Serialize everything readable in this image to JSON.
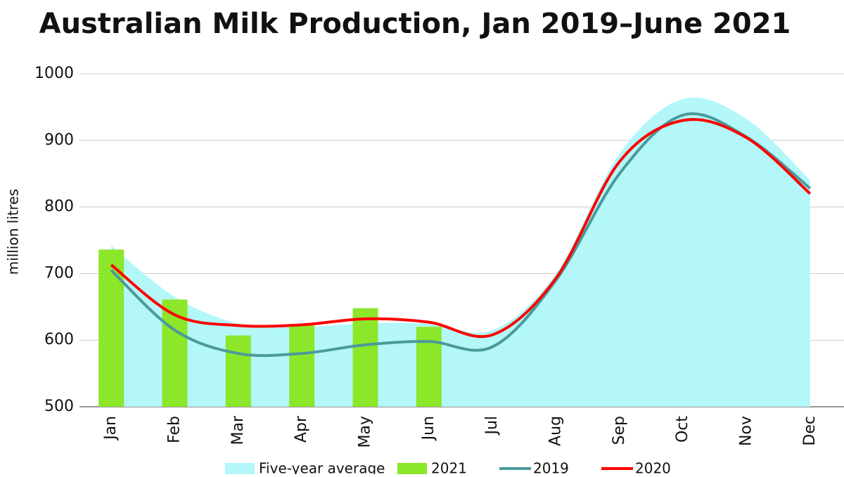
{
  "chart_data": {
    "type": "combo",
    "title": "Australian Milk Production, Jan 2019–June 2021",
    "y_label": "million litres",
    "categories": [
      "Jan",
      "Feb",
      "Mar",
      "Apr",
      "May",
      "Jun",
      "Jul",
      "Aug",
      "Sep",
      "Oct",
      "Nov",
      "Dec"
    ],
    "series": [
      {
        "name": "Five-year average",
        "type": "area",
        "color": "#b3f7f8",
        "values": [
          742,
          665,
          625,
          620,
          625,
          625,
          615,
          700,
          880,
          962,
          932,
          840
        ]
      },
      {
        "name": "2021",
        "type": "bar",
        "color": "#8ce62a",
        "values": [
          736,
          661,
          607,
          622,
          648,
          620,
          null,
          null,
          null,
          null,
          null,
          null
        ]
      },
      {
        "name": "2019",
        "type": "line",
        "color": "#4a9a9c",
        "values": [
          705,
          615,
          580,
          580,
          593,
          598,
          590,
          690,
          850,
          938,
          905,
          828
        ]
      },
      {
        "name": "2020",
        "type": "line",
        "color": "#ff0000",
        "values": [
          713,
          638,
          622,
          623,
          632,
          627,
          608,
          693,
          868,
          930,
          904,
          820
        ]
      }
    ],
    "ylim": [
      500,
      1000
    ],
    "yticks": [
      500,
      600,
      700,
      800,
      900,
      1000
    ],
    "grid": true
  }
}
